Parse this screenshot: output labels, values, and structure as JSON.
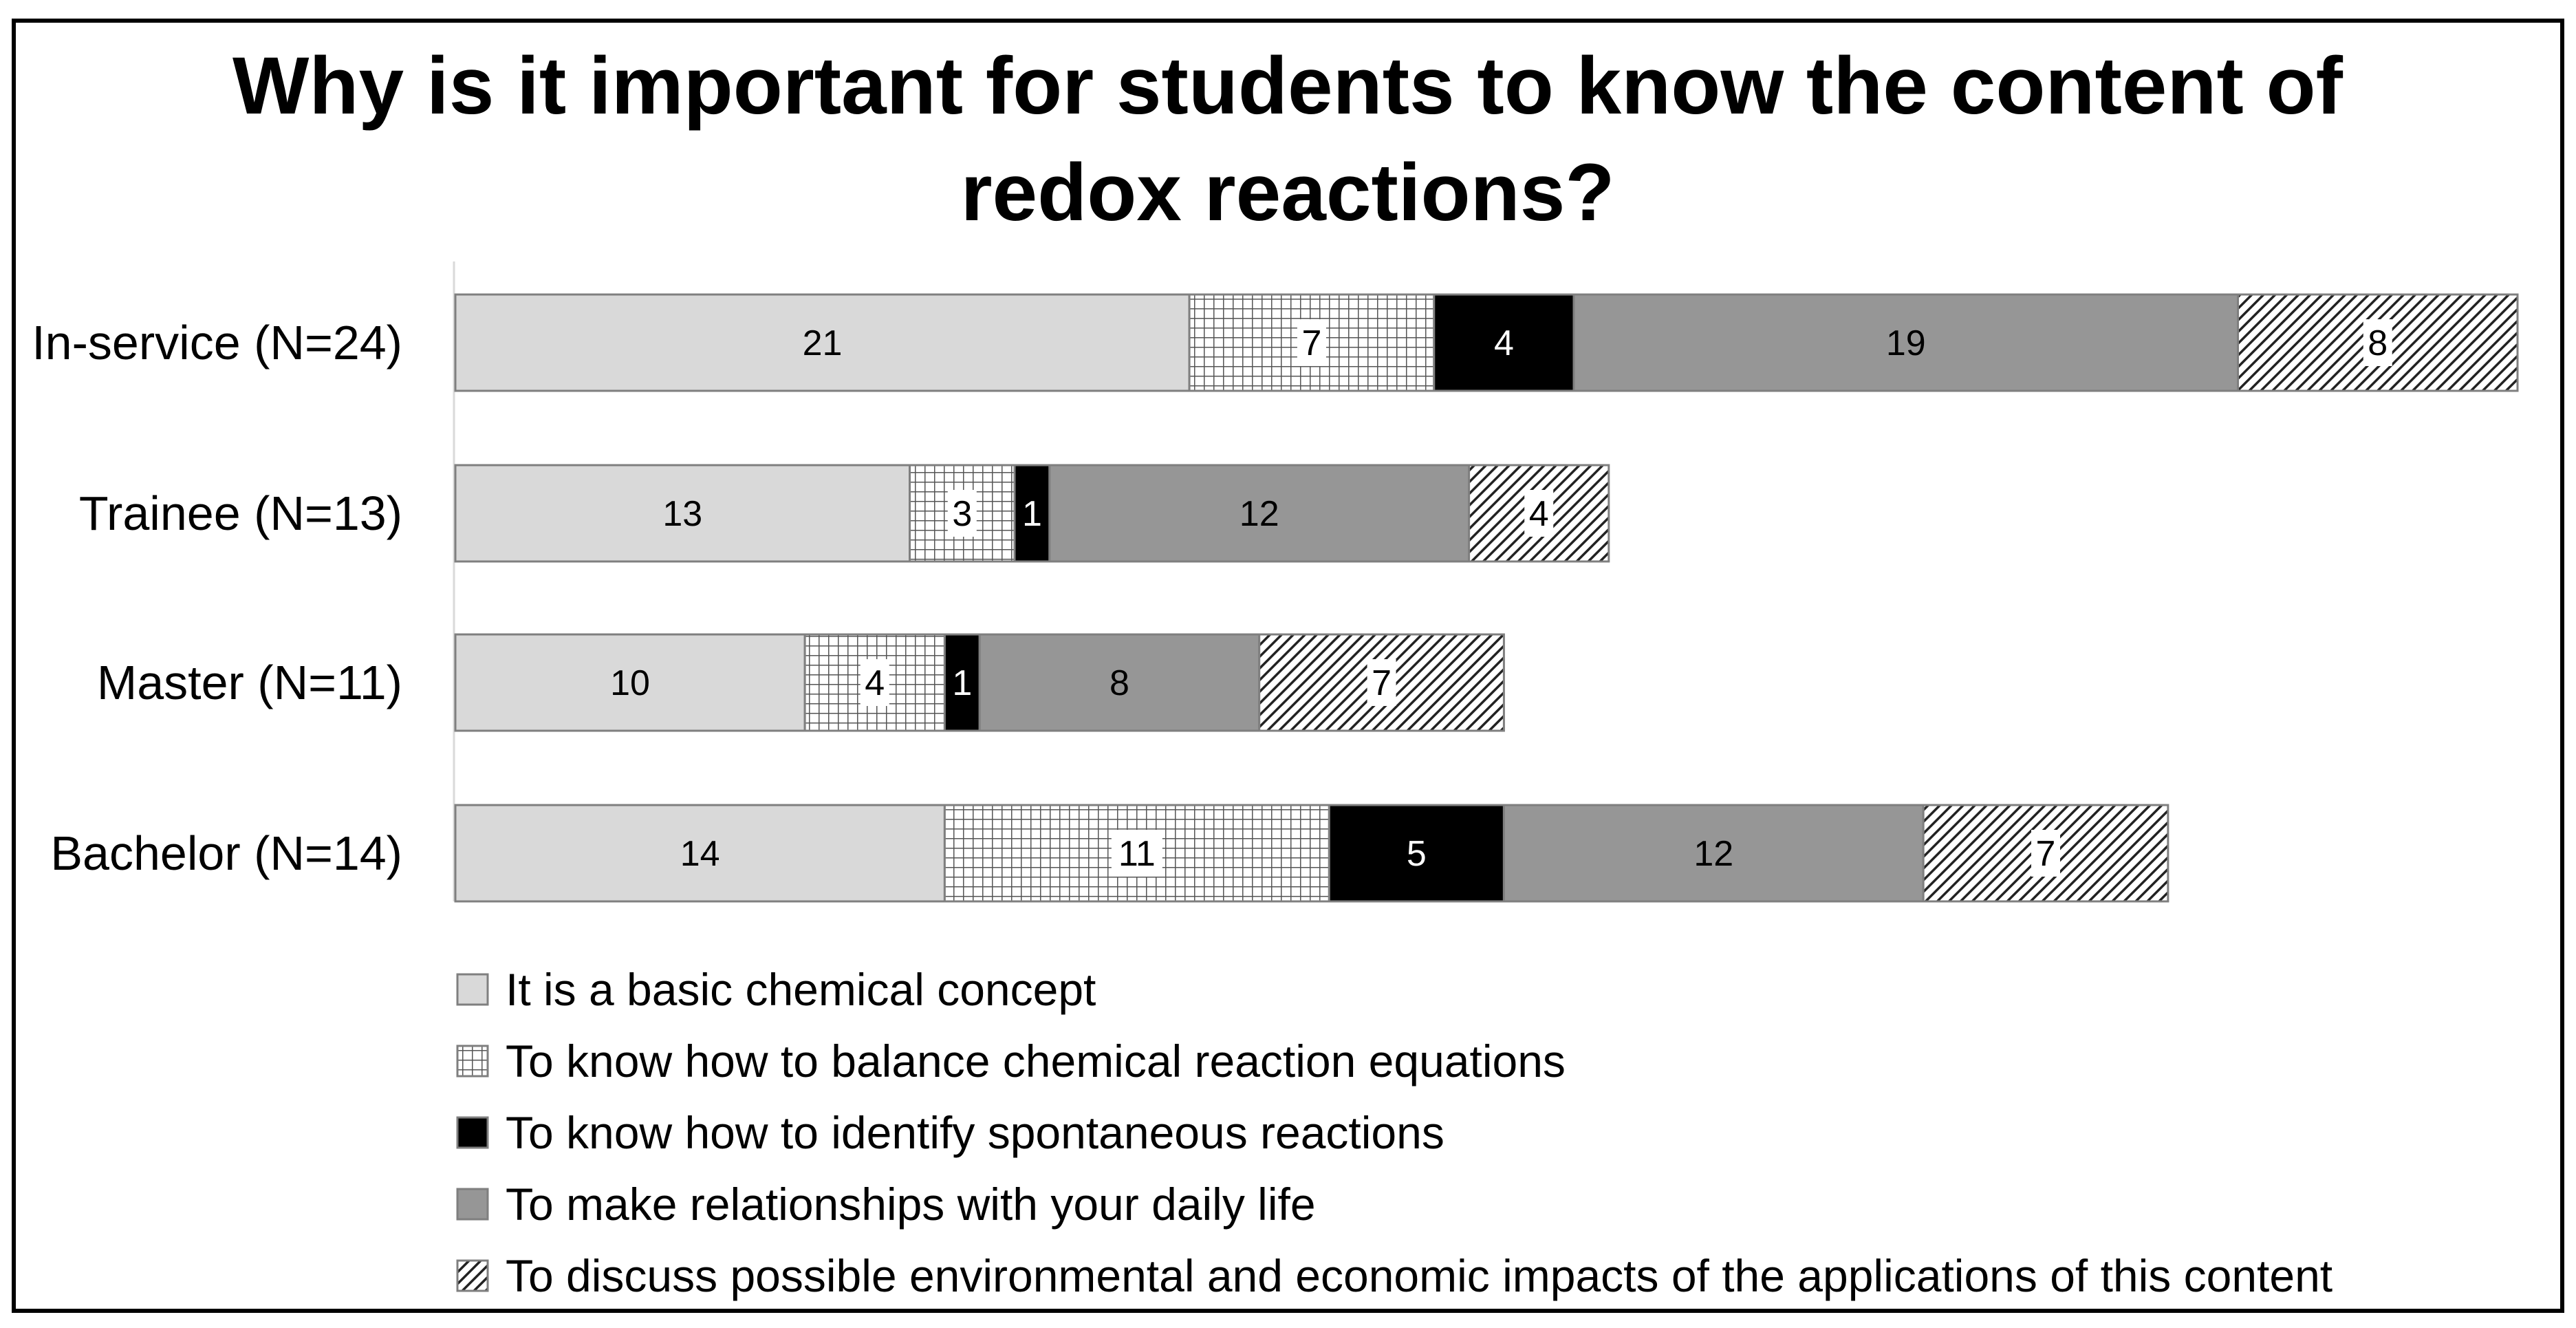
{
  "chart_data": {
    "type": "bar",
    "orientation": "horizontal",
    "stacked": true,
    "title": "Why is it important for students to know the content of redox reactions?",
    "title_lines": [
      "Why is it important for students to know the content of",
      "redox reactions?"
    ],
    "categories": [
      "In-service (N=24)",
      "Trainee (N=13)",
      "Master (N=11)",
      "Bachelor (N=14)"
    ],
    "series": [
      {
        "name": "It is a basic chemical concept",
        "values": [
          21,
          13,
          10,
          14
        ],
        "fill": "#d9d9d9",
        "pattern": "solid"
      },
      {
        "name": "To know how to balance chemical reaction equations",
        "values": [
          7,
          3,
          4,
          11
        ],
        "fill": "#ffffff",
        "pattern": "grid"
      },
      {
        "name": "To know how to identify spontaneous reactions",
        "values": [
          4,
          1,
          1,
          5
        ],
        "fill": "#000000",
        "pattern": "solid"
      },
      {
        "name": "To make relationships with your daily life",
        "values": [
          19,
          12,
          8,
          12
        ],
        "fill": "#969696",
        "pattern": "solid"
      },
      {
        "name": "To discuss possible environmental and economic impacts of the applications of this content",
        "values": [
          8,
          4,
          7,
          7
        ],
        "fill": "#ffffff",
        "pattern": "diagonal"
      }
    ],
    "xlim": [
      0,
      59
    ],
    "grid": false,
    "legend_position": "bottom",
    "data_labels": true
  }
}
